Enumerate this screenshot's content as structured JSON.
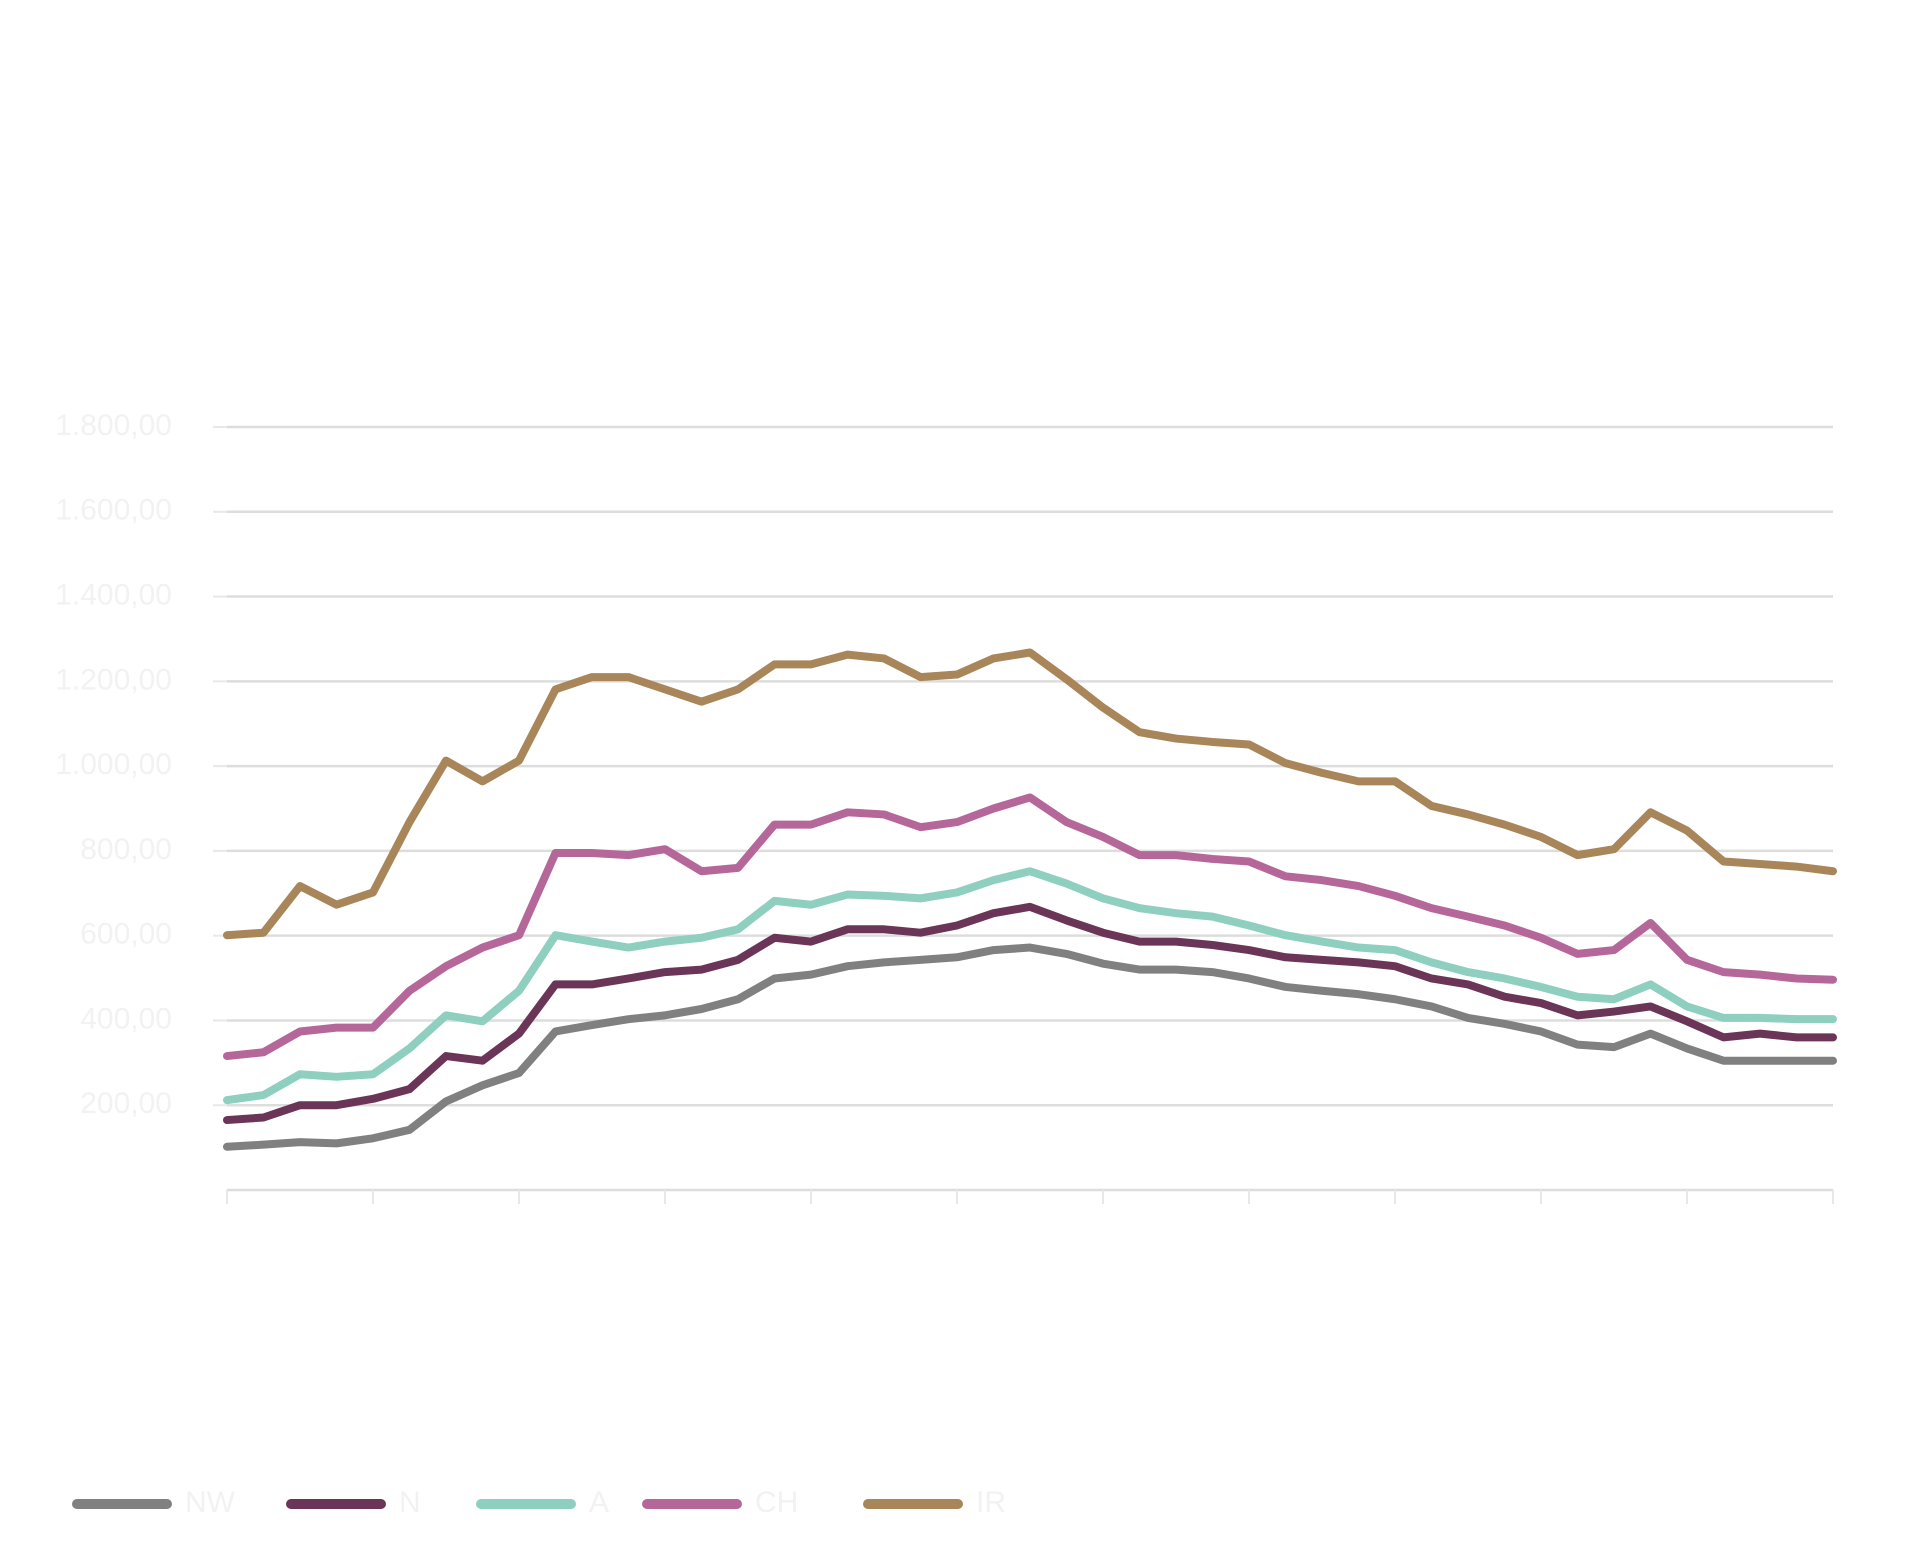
{
  "chart_data": {
    "type": "line",
    "x": [
      0,
      1,
      2,
      3,
      4,
      5,
      6,
      7,
      8,
      9,
      10,
      11,
      12,
      13,
      14,
      15,
      16,
      17,
      18,
      19,
      20,
      21,
      22,
      23,
      24,
      25,
      26,
      27,
      28,
      29,
      30,
      31,
      32,
      33,
      34,
      35,
      36,
      37,
      38,
      39,
      40,
      41,
      42,
      43,
      44
    ],
    "xlim": [
      0,
      44
    ],
    "xticks": [
      0,
      4,
      8,
      12,
      16,
      20,
      24,
      28,
      32,
      36,
      40,
      44
    ],
    "ylim": [
      0,
      1800
    ],
    "yticks": [
      {
        "value": 200,
        "label": "200,00"
      },
      {
        "value": 400,
        "label": "400,00"
      },
      {
        "value": 600,
        "label": "600,00"
      },
      {
        "value": 800,
        "label": "800,00"
      },
      {
        "value": 1000,
        "label": "1.000,00"
      },
      {
        "value": 1200,
        "label": "1.200,00"
      },
      {
        "value": 1400,
        "label": "1.400,00"
      },
      {
        "value": 1600,
        "label": "1.600,00"
      },
      {
        "value": 1800,
        "label": "1.800,00"
      }
    ],
    "grid": true,
    "series": [
      {
        "name": "NW",
        "color": "#808080",
        "values": [
          102,
          107,
          113,
          110,
          122,
          142,
          209,
          247,
          276,
          374,
          389,
          403,
          412,
          427,
          450,
          499,
          508,
          528,
          537,
          543,
          549,
          566,
          572,
          557,
          534,
          520,
          520,
          514,
          499,
          479,
          470,
          462,
          450,
          433,
          406,
          392,
          374,
          343,
          337,
          369,
          334,
          305,
          305,
          305,
          305
        ]
      },
      {
        "name": "N",
        "color": "#6b3557",
        "values": [
          165,
          171,
          200,
          200,
          215,
          238,
          316,
          305,
          369,
          485,
          485,
          499,
          514,
          520,
          543,
          595,
          586,
          615,
          615,
          607,
          624,
          653,
          668,
          636,
          607,
          586,
          586,
          578,
          566,
          549,
          543,
          537,
          528,
          499,
          485,
          456,
          441,
          412,
          421,
          433,
          398,
          360,
          369,
          360,
          360
        ]
      },
      {
        "name": "A",
        "color": "#8ecfc0",
        "values": [
          212,
          224,
          273,
          267,
          273,
          334,
          412,
          398,
          470,
          601,
          586,
          572,
          586,
          595,
          615,
          682,
          673,
          697,
          694,
          688,
          702,
          731,
          752,
          723,
          688,
          665,
          653,
          645,
          624,
          601,
          586,
          572,
          566,
          537,
          514,
          499,
          479,
          456,
          450,
          485,
          433,
          406,
          406,
          403,
          403
        ]
      },
      {
        "name": "CH",
        "color": "#b5679a",
        "values": [
          316,
          325,
          374,
          383,
          383,
          470,
          528,
          572,
          601,
          795,
          795,
          790,
          804,
          752,
          760,
          862,
          862,
          891,
          886,
          856,
          868,
          900,
          926,
          868,
          833,
          790,
          790,
          781,
          775,
          740,
          731,
          717,
          694,
          665,
          645,
          624,
          595,
          557,
          566,
          630,
          543,
          514,
          508,
          499,
          496
        ]
      },
      {
        "name": "IR",
        "color": "#a8865a",
        "values": [
          601,
          607,
          717,
          673,
          702,
          868,
          1013,
          964,
          1013,
          1181,
          1210,
          1210,
          1181,
          1152,
          1181,
          1240,
          1240,
          1263,
          1254,
          1210,
          1216,
          1254,
          1268,
          1205,
          1138,
          1080,
          1065,
          1057,
          1051,
          1007,
          984,
          964,
          964,
          906,
          886,
          862,
          833,
          790,
          804,
          891,
          848,
          775,
          769,
          763,
          752
        ]
      }
    ]
  }
}
